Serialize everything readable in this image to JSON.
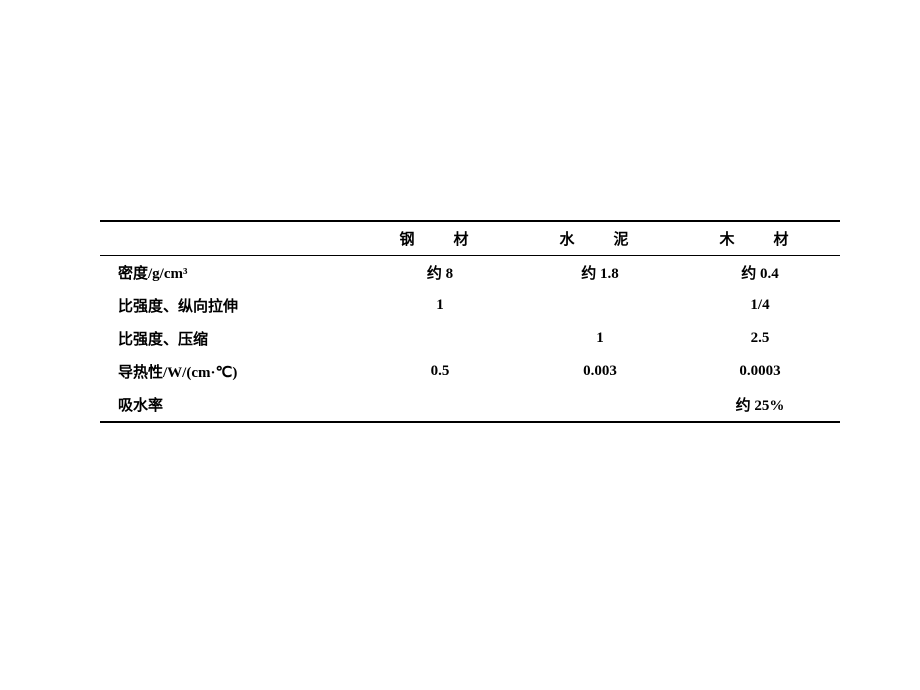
{
  "table": {
    "columns": [
      "钢　材",
      "水　泥",
      "木　材"
    ],
    "rows": [
      {
        "label": "密度/g/cm³",
        "cells": [
          "约 8",
          "约 1.8",
          "约 0.4"
        ]
      },
      {
        "label": "比强度、纵向拉伸",
        "cells": [
          "1",
          "",
          "1/4"
        ]
      },
      {
        "label": "比强度、压缩",
        "cells": [
          "",
          "1",
          "2.5"
        ]
      },
      {
        "label": "导热性/W/(cm·℃)",
        "cells": [
          "0.5",
          "0.003",
          "0.0003"
        ]
      },
      {
        "label": "吸水率",
        "cells": [
          "",
          "",
          "约 25%"
        ]
      }
    ],
    "style": {
      "background_color": "#ffffff",
      "text_color": "#000000",
      "border_color": "#000000",
      "top_border_width": 2.5,
      "header_border_width": 1.5,
      "bottom_border_width": 2.0,
      "font_size": 15,
      "font_weight": "bold",
      "header_letter_spacing": 12
    }
  }
}
